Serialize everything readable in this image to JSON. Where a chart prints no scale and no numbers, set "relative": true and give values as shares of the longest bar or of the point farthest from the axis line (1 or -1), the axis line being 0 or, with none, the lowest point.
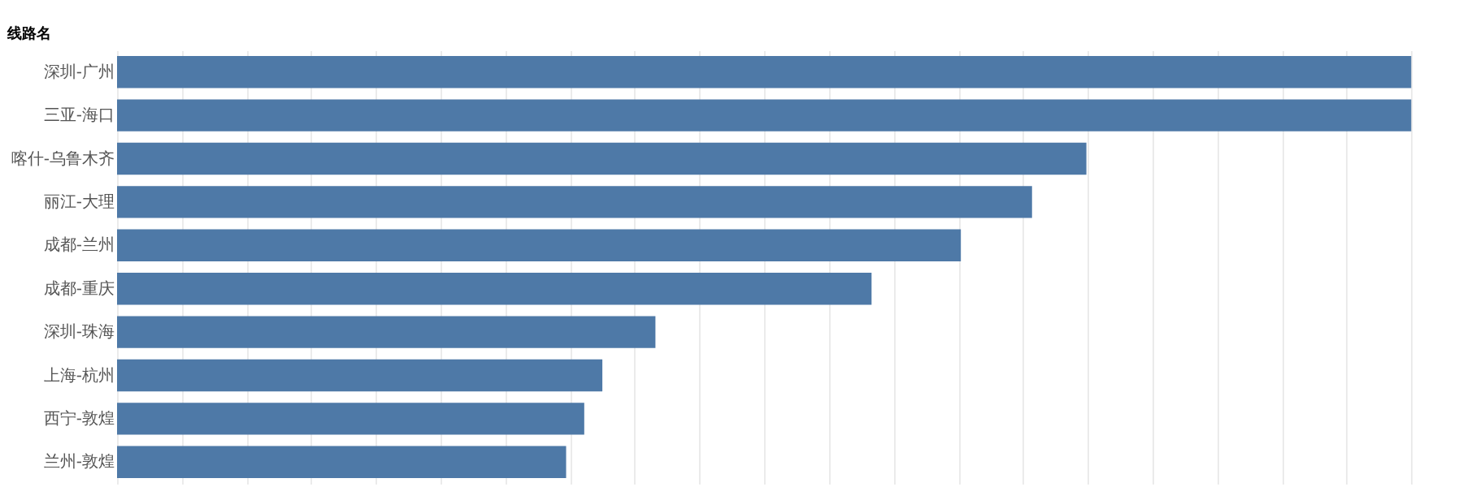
{
  "chart_data": {
    "type": "bar",
    "orientation": "horizontal",
    "relative": true,
    "ylabel": "线路名",
    "categories": [
      "深圳-广州",
      "三亚-海口",
      "喀什-乌鲁木齐",
      "丽江-大理",
      "成都-兰州",
      "成都-重庆",
      "深圳-珠海",
      "上海-杭州",
      "西宁-敦煌",
      "兰州-敦煌"
    ],
    "values": [
      1,
      1,
      0.749,
      0.707,
      0.652,
      0.583,
      0.416,
      0.375,
      0.361,
      0.347
    ],
    "color": "#4e79a7",
    "grid": "x"
  }
}
